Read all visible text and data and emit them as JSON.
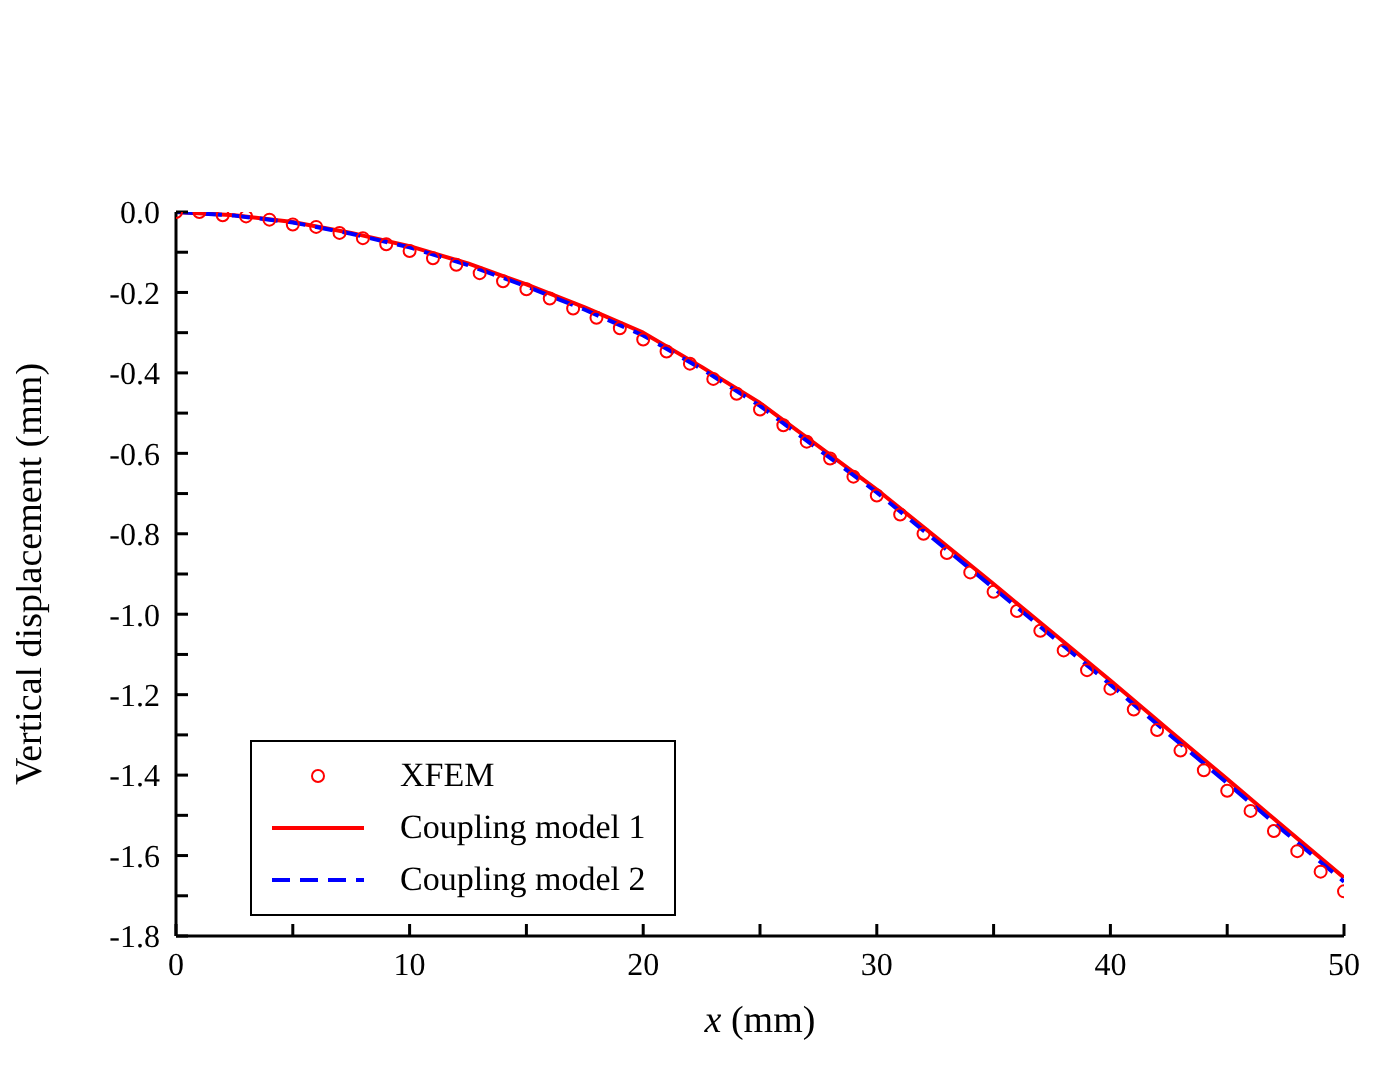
{
  "chart_data": {
    "type": "line",
    "xlabel": "x (mm)",
    "ylabel": "Vertical displacement (mm)",
    "xlim": [
      0,
      50
    ],
    "xticks": [
      0,
      {
        "value": 5,
        "label": null
      },
      10,
      {
        "value": 15,
        "label": null
      },
      20,
      {
        "value": 25,
        "label": null
      },
      30,
      {
        "value": 35,
        "label": null
      },
      40,
      {
        "value": 45,
        "label": null
      },
      50
    ],
    "ylim": [
      -1.8,
      0
    ],
    "yticks": [
      {
        "value": 0,
        "label": "0.0"
      },
      {
        "value": -0.1,
        "label": null
      },
      -0.2,
      {
        "value": -0.3,
        "label": null
      },
      -0.4,
      {
        "value": -0.5,
        "label": null
      },
      -0.6,
      {
        "value": -0.7,
        "label": null
      },
      -0.8,
      {
        "value": -0.9,
        "label": null
      },
      {
        "value": -1,
        "label": "-1.0"
      },
      {
        "value": -1.1,
        "label": null
      },
      -1.2,
      {
        "value": -1.3,
        "label": null
      },
      -1.4,
      {
        "value": -1.5,
        "label": null
      },
      -1.6,
      {
        "value": -1.7,
        "label": null
      },
      -1.8
    ],
    "grid": false,
    "legend": "bottom left",
    "series": [
      {
        "name": "XFEM",
        "type": "scatter",
        "marker": "circle",
        "color": "#ff0000",
        "x": [
          0,
          1,
          2,
          3,
          4,
          5,
          6,
          7,
          8,
          9,
          10,
          11,
          12,
          13,
          14,
          15,
          16,
          17,
          18,
          19,
          20,
          21,
          22,
          23,
          24,
          25,
          26,
          27,
          28,
          29,
          30,
          31,
          32,
          33,
          34,
          35,
          36,
          37,
          38,
          39,
          40,
          41,
          42,
          43,
          44,
          45,
          46,
          47,
          48,
          49,
          50
        ],
        "values": [
          0,
          0,
          -0.008,
          -0.011,
          -0.019,
          -0.031,
          -0.037,
          -0.052,
          -0.065,
          -0.08,
          -0.097,
          -0.115,
          -0.131,
          -0.152,
          -0.172,
          -0.192,
          -0.215,
          -0.24,
          -0.263,
          -0.289,
          -0.317,
          -0.347,
          -0.377,
          -0.415,
          -0.452,
          -0.491,
          -0.53,
          -0.571,
          -0.613,
          -0.658,
          -0.705,
          -0.752,
          -0.8,
          -0.848,
          -0.896,
          -0.944,
          -0.992,
          -1.041,
          -1.09,
          -1.139,
          -1.185,
          -1.237,
          -1.288,
          -1.339,
          -1.388,
          -1.439,
          -1.489,
          -1.539,
          -1.589,
          -1.64,
          -1.689
        ]
      },
      {
        "name": "Coupling model 1",
        "marker": "none",
        "line_style": "solid",
        "color": "#ff0000",
        "x": [
          0,
          2.5,
          5,
          7.5,
          10,
          12.5,
          15,
          17.5,
          20,
          22.5,
          25,
          27.5,
          30,
          32.5,
          35,
          37.5,
          40,
          42.5,
          45,
          47.5,
          50
        ],
        "values": [
          0,
          -0.008,
          -0.025,
          -0.052,
          -0.085,
          -0.128,
          -0.18,
          -0.237,
          -0.3,
          -0.385,
          -0.475,
          -0.582,
          -0.69,
          -0.807,
          -0.925,
          -1.045,
          -1.165,
          -1.288,
          -1.41,
          -1.533,
          -1.655
        ]
      },
      {
        "name": "Coupling model 2",
        "marker": "none",
        "line_style": "dashed",
        "color": "#0000ff",
        "x": [
          0,
          2.5,
          5,
          7.5,
          10,
          12.5,
          15,
          17.5,
          20,
          22.5,
          25,
          27.5,
          30,
          32.5,
          35,
          37.5,
          40,
          42.5,
          45,
          47.5,
          50
        ],
        "values": [
          0,
          -0.009,
          -0.026,
          -0.054,
          -0.088,
          -0.132,
          -0.185,
          -0.243,
          -0.307,
          -0.39,
          -0.482,
          -0.59,
          -0.697,
          -0.816,
          -0.935,
          -1.055,
          -1.175,
          -1.298,
          -1.42,
          -1.543,
          -1.665
        ]
      }
    ]
  }
}
